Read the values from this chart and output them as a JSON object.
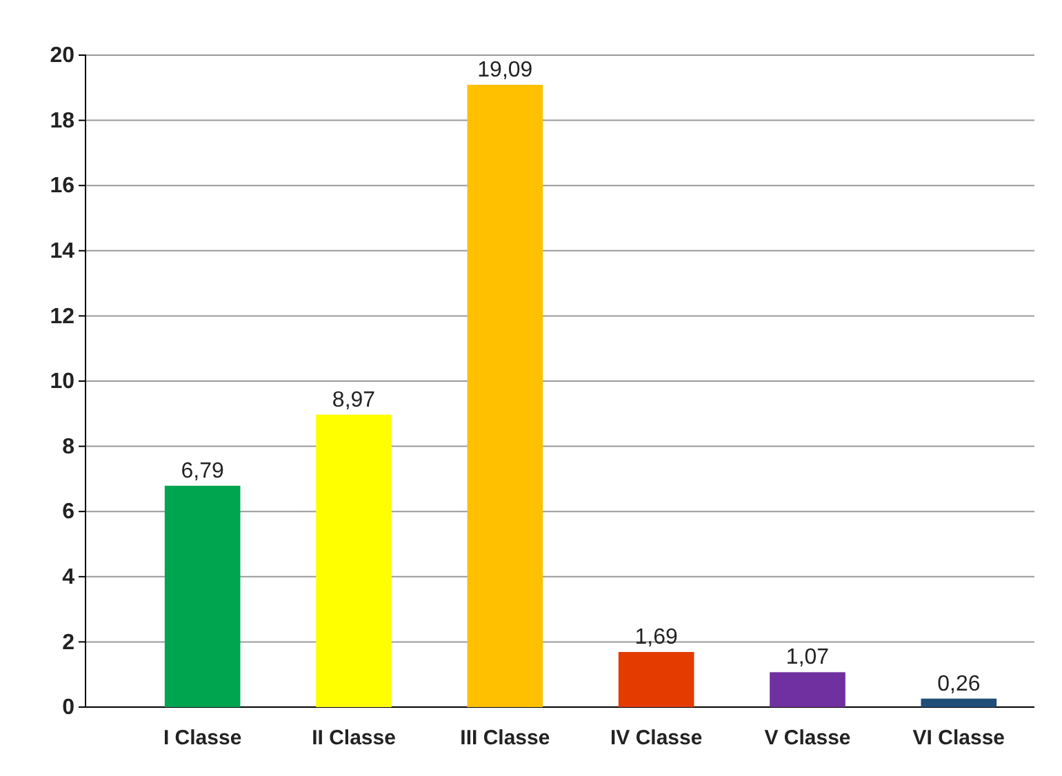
{
  "chart_data": {
    "type": "bar",
    "categories": [
      "I Classe",
      "II Classe",
      "III Classe",
      "IV Classe",
      "V Classe",
      "VI Classe"
    ],
    "values": [
      6.79,
      8.97,
      19.09,
      1.69,
      1.07,
      0.26
    ],
    "colors": [
      "#00a550",
      "#ffff00",
      "#ffc000",
      "#e33b00",
      "#7030a0",
      "#1f4e79"
    ],
    "value_labels": [
      "6,79",
      "8,97",
      "19,09",
      "1,69",
      "1,07",
      "0,26"
    ],
    "ylim": [
      0,
      20
    ],
    "yticks": [
      0,
      2,
      4,
      6,
      8,
      10,
      12,
      14,
      16,
      18,
      20
    ],
    "grid": "y"
  }
}
